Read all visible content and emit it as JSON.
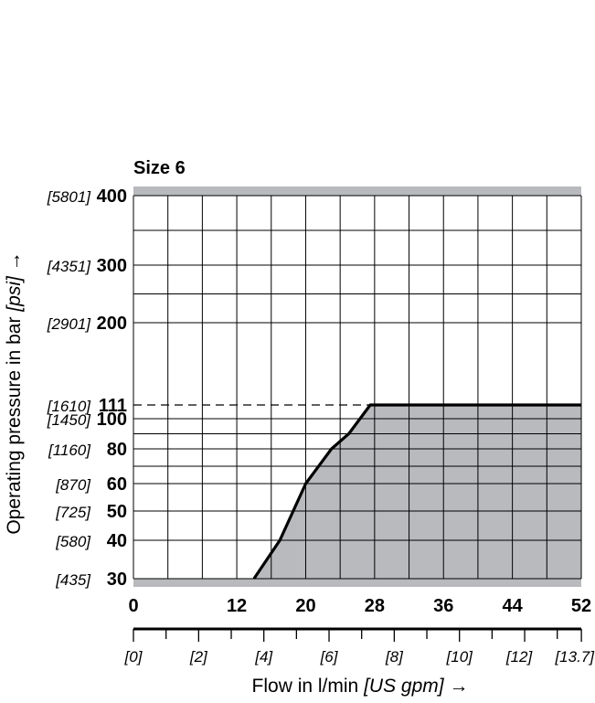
{
  "chart_data": {
    "type": "area",
    "title": "Size 6",
    "xlabel": {
      "main": "Flow in l/min",
      "unit": "[US gpm]",
      "arrow": "→"
    },
    "ylabel": {
      "main": "Operating pressure in bar",
      "unit": "[psi]",
      "arrow": "→"
    },
    "x_ticks_lpm": [
      "0",
      "12",
      "20",
      "28",
      "36",
      "44",
      "52"
    ],
    "x_ticks_gpm": [
      "[0]",
      "[2]",
      "[4]",
      "[6]",
      "[8]",
      "[10]",
      "[12]",
      "[13.7]"
    ],
    "y_ticks": [
      {
        "bar": "400",
        "psi": "[5801]"
      },
      {
        "bar": "300",
        "psi": "[4351]"
      },
      {
        "bar": "200",
        "psi": "[2901]"
      },
      {
        "bar": "111",
        "psi": "[1610]"
      },
      {
        "bar": "100",
        "psi": "[1450]"
      },
      {
        "bar": "80",
        "psi": "[1160]"
      },
      {
        "bar": "60",
        "psi": "[870]"
      },
      {
        "bar": "50",
        "psi": "[725]"
      },
      {
        "bar": "40",
        "psi": "[580]"
      },
      {
        "bar": "30",
        "psi": "[435]"
      }
    ],
    "xlim": [
      0,
      52
    ],
    "ylim": [
      30,
      400
    ],
    "max_pressure_bar": 111,
    "limit_curve": [
      {
        "x": 14,
        "y": 30
      },
      {
        "x": 17,
        "y": 40
      },
      {
        "x": 20,
        "y": 60
      },
      {
        "x": 23,
        "y": 80
      },
      {
        "x": 25,
        "y": 90
      },
      {
        "x": 27.5,
        "y": 111
      },
      {
        "x": 52,
        "y": 111
      }
    ],
    "colors": {
      "fill": "#b9babd",
      "line": "#000000",
      "frame": "#b9babd"
    }
  }
}
